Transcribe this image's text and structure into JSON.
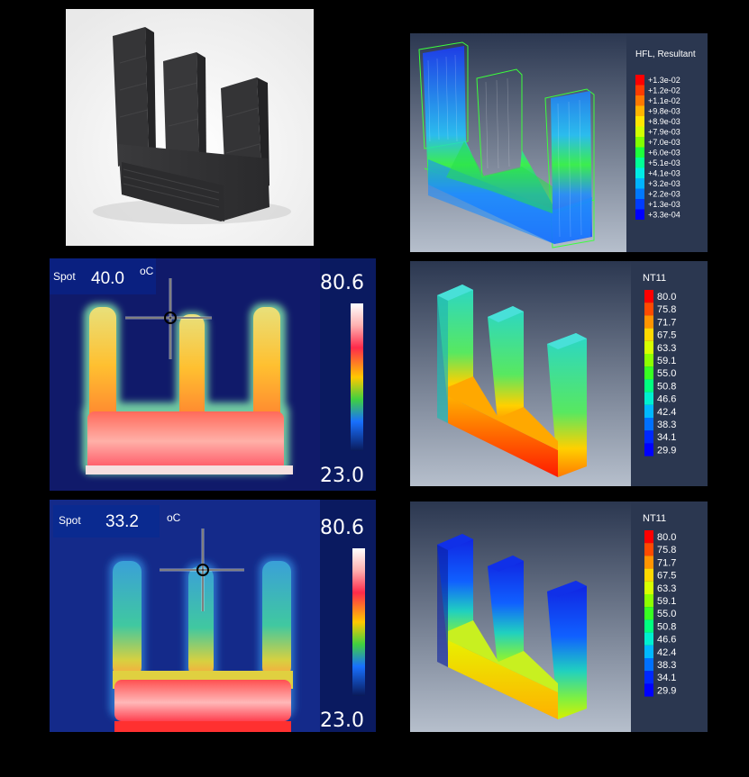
{
  "hfl_panel": {
    "legend_title": "HFL, Resultant",
    "legend_values": [
      "+1.3e-02",
      "+1.2e-02",
      "+1.1e-02",
      "+9.8e-03",
      "+8.9e-03",
      "+7.9e-03",
      "+7.0e-03",
      "+6.0e-03",
      "+5.1e-03",
      "+4.1e-03",
      "+3.2e-03",
      "+2.2e-03",
      "+1.3e-03",
      "+3.3e-04"
    ],
    "legend_colors": [
      "#ff0000",
      "#ff3c00",
      "#ff7800",
      "#ffb400",
      "#ffe600",
      "#d2ff00",
      "#82ff00",
      "#1eff3c",
      "#00ff96",
      "#00ebe6",
      "#00b4ff",
      "#0078ff",
      "#003cff",
      "#0000ff"
    ]
  },
  "thermal_top": {
    "spot_label": "Spot",
    "spot_value": "40.0",
    "unit": "oC",
    "scale_max": "80.6",
    "scale_min": "23.0"
  },
  "thermal_bottom": {
    "spot_label": "Spot",
    "spot_value": "33.2",
    "unit": "oC",
    "scale_max": "80.6",
    "scale_min": "23.0"
  },
  "sim_top": {
    "legend_title": "NT11",
    "legend_values": [
      "80.0",
      "75.8",
      "71.7",
      "67.5",
      "63.3",
      "59.1",
      "55.0",
      "50.8",
      "46.6",
      "42.4",
      "38.3",
      "34.1",
      "29.9"
    ]
  },
  "sim_bottom": {
    "legend_title": "NT11",
    "legend_values": [
      "80.0",
      "75.8",
      "71.7",
      "67.5",
      "63.3",
      "59.1",
      "55.0",
      "50.8",
      "46.6",
      "42.4",
      "38.3",
      "34.1",
      "29.9"
    ]
  },
  "nt11_colors": [
    "#ff0000",
    "#ff4a00",
    "#ff9400",
    "#ffd900",
    "#d8ff00",
    "#8cff00",
    "#38ff22",
    "#00ff80",
    "#00f0d0",
    "#00b8ff",
    "#0070ff",
    "#0028ff",
    "#0000ff"
  ]
}
